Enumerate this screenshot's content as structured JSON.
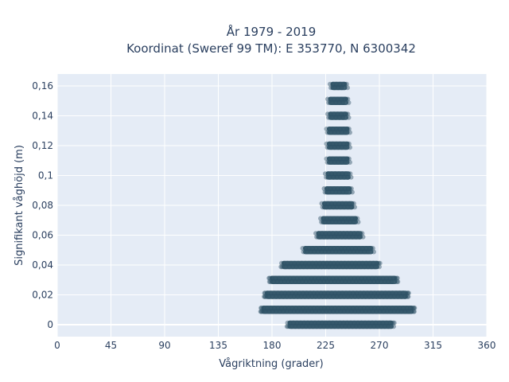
{
  "chart_data": {
    "type": "scatter",
    "title_line1": "År 1979 - 2019",
    "title_line2": "Koordinat (Sweref 99 TM): E 353770, N 6300342",
    "xlabel": "Vågriktning (grader)",
    "ylabel": "Signifikant våghöjd (m)",
    "xlim": [
      0,
      360
    ],
    "ylim": [
      -0.008,
      0.168
    ],
    "xticks": [
      0,
      45,
      90,
      135,
      180,
      225,
      270,
      315,
      360
    ],
    "xtick_labels": [
      "0",
      "45",
      "90",
      "135",
      "180",
      "225",
      "270",
      "315",
      "360"
    ],
    "yticks": [
      0,
      0.02,
      0.04,
      0.06,
      0.08,
      0.1,
      0.12,
      0.14,
      0.16
    ],
    "ytick_labels": [
      "0",
      "0,02",
      "0,04",
      "0,06",
      "0,08",
      "0,1",
      "0,12",
      "0,14",
      "0,16"
    ],
    "grid": true,
    "marker_color": "#2e5266",
    "bands": [
      {
        "y": 0.0,
        "x_min": 195,
        "x_max": 280
      },
      {
        "y": 0.01,
        "x_min": 173,
        "x_max": 297
      },
      {
        "y": 0.02,
        "x_min": 176,
        "x_max": 292
      },
      {
        "y": 0.03,
        "x_min": 180,
        "x_max": 283
      },
      {
        "y": 0.04,
        "x_min": 190,
        "x_max": 268
      },
      {
        "y": 0.05,
        "x_min": 208,
        "x_max": 263
      },
      {
        "y": 0.06,
        "x_min": 219,
        "x_max": 254
      },
      {
        "y": 0.07,
        "x_min": 223,
        "x_max": 250
      },
      {
        "y": 0.08,
        "x_min": 224,
        "x_max": 247
      },
      {
        "y": 0.09,
        "x_min": 226,
        "x_max": 245
      },
      {
        "y": 0.1,
        "x_min": 227,
        "x_max": 244
      },
      {
        "y": 0.11,
        "x_min": 228,
        "x_max": 243
      },
      {
        "y": 0.12,
        "x_min": 228,
        "x_max": 243
      },
      {
        "y": 0.13,
        "x_min": 228,
        "x_max": 243
      },
      {
        "y": 0.14,
        "x_min": 229,
        "x_max": 242
      },
      {
        "y": 0.15,
        "x_min": 229,
        "x_max": 242
      },
      {
        "y": 0.16,
        "x_min": 231,
        "x_max": 241
      }
    ]
  }
}
